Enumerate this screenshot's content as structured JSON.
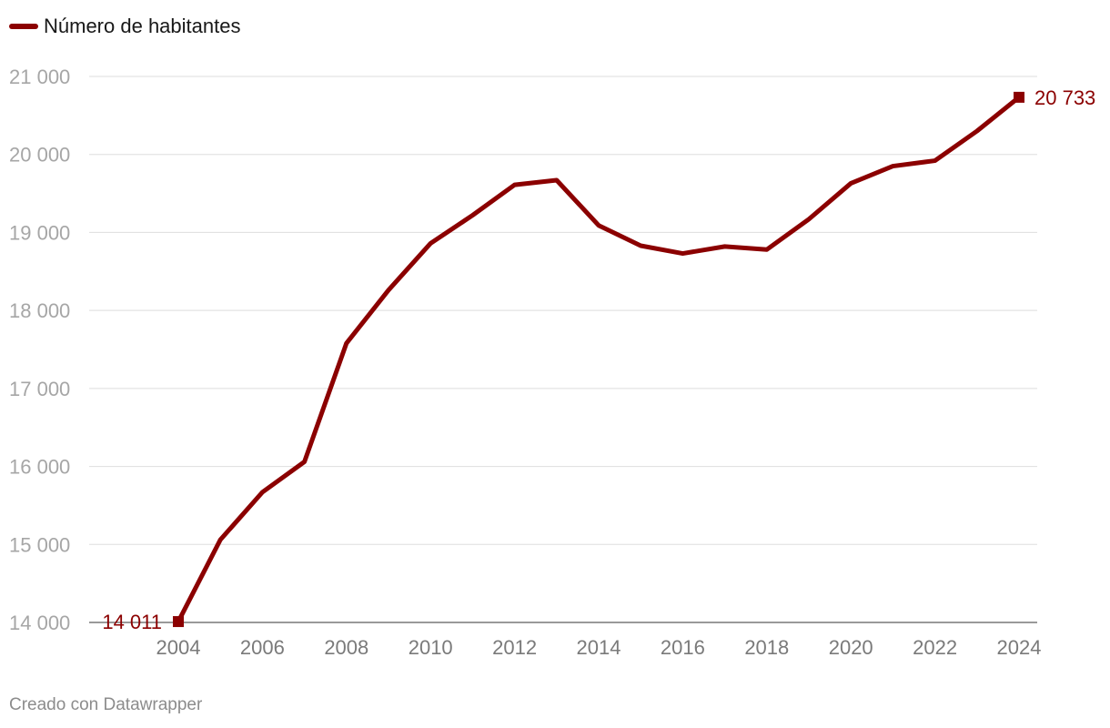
{
  "legend": {
    "label": "Número de habitantes"
  },
  "footer": {
    "credit": "Creado con Datawrapper"
  },
  "chart_data": {
    "type": "line",
    "x": [
      2004,
      2005,
      2006,
      2007,
      2008,
      2009,
      2010,
      2011,
      2012,
      2013,
      2014,
      2015,
      2016,
      2017,
      2018,
      2019,
      2020,
      2021,
      2022,
      2023,
      2024
    ],
    "series": [
      {
        "name": "Número de habitantes",
        "color": "#8b0000",
        "values": [
          14011,
          15060,
          15670,
          16060,
          17580,
          18260,
          18860,
          19220,
          19610,
          19670,
          19090,
          18830,
          18730,
          18820,
          18780,
          19170,
          19630,
          19850,
          19920,
          20300,
          20733
        ]
      }
    ],
    "ylim": [
      14000,
      21000
    ],
    "yticks": [
      14000,
      15000,
      16000,
      17000,
      18000,
      19000,
      20000,
      21000
    ],
    "ytick_labels": [
      "14 000",
      "15 000",
      "16 000",
      "17 000",
      "18 000",
      "19 000",
      "20 000",
      "21 000"
    ],
    "xticks": [
      2004,
      2006,
      2008,
      2010,
      2012,
      2014,
      2016,
      2018,
      2020,
      2022,
      2024
    ],
    "xtick_labels": [
      "2004",
      "2006",
      "2008",
      "2010",
      "2012",
      "2014",
      "2016",
      "2018",
      "2020",
      "2022",
      "2024"
    ],
    "annotations": [
      {
        "x": 2004,
        "y": 14011,
        "label": "14 011",
        "position": "left"
      },
      {
        "x": 2024,
        "y": 20733,
        "label": "20 733",
        "position": "right"
      }
    ],
    "grid": true,
    "legend_position": "top-left"
  }
}
